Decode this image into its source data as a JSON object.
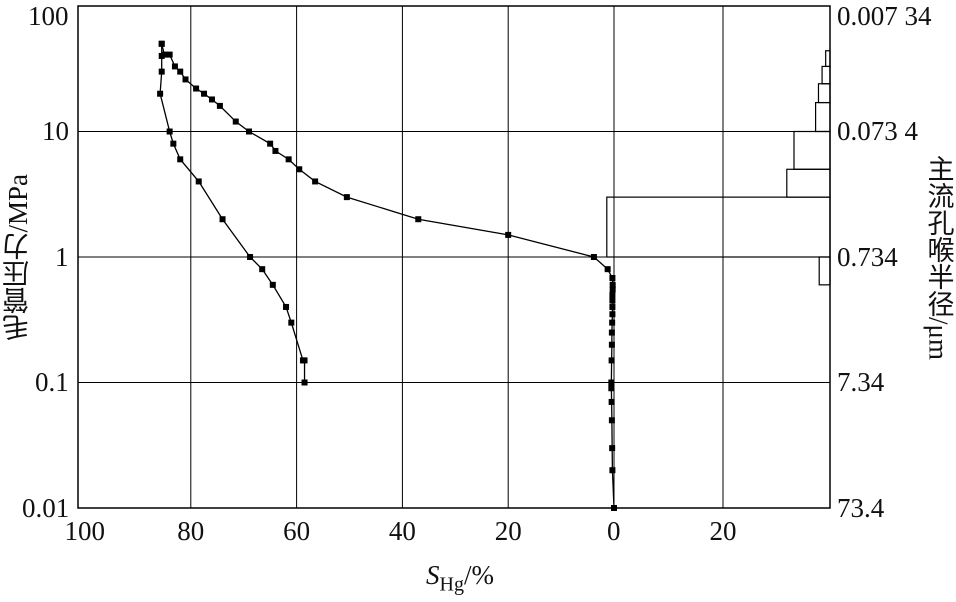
{
  "chart_data": {
    "type": "line",
    "xlabel_main": "S",
    "xlabel_sub": "Hg",
    "xlabel_unit": "/%",
    "ylabel_left": "毛管压力/MPa",
    "ylabel_right": "主流孔喉半径/μm",
    "x_ticks": [
      "100",
      "80",
      "60",
      "40",
      "20",
      "0",
      "20"
    ],
    "y_ticks_left": [
      "100",
      "10",
      "1",
      "0.1",
      "0.01"
    ],
    "y_ticks_right": [
      "0.007 34",
      "0.073 4",
      "0.734",
      "7.34",
      "73.4"
    ],
    "ylim_left": [
      0.01,
      100
    ],
    "yscale": "log",
    "grid": true,
    "series": [
      {
        "id": "injection",
        "points": [
          [
            0.0,
            0.01
          ],
          [
            0.3,
            0.02
          ],
          [
            0.35,
            0.03
          ],
          [
            0.4,
            0.05
          ],
          [
            0.45,
            0.07
          ],
          [
            0.5,
            0.09
          ],
          [
            0.5,
            0.1
          ],
          [
            0.45,
            0.15
          ],
          [
            0.4,
            0.2
          ],
          [
            0.4,
            0.25
          ],
          [
            0.35,
            0.3
          ],
          [
            0.3,
            0.35
          ],
          [
            0.3,
            0.4
          ],
          [
            0.3,
            0.45
          ],
          [
            0.3,
            0.5
          ],
          [
            0.25,
            0.55
          ],
          [
            0.25,
            0.6
          ],
          [
            0.3,
            0.68
          ],
          [
            1.2,
            0.8
          ],
          [
            3.8,
            1.0
          ],
          [
            20.0,
            1.5
          ],
          [
            37.0,
            2.0
          ],
          [
            50.5,
            3.0
          ],
          [
            56.5,
            4.0
          ],
          [
            59.5,
            5.0
          ],
          [
            61.5,
            6.0
          ],
          [
            64.0,
            7.0
          ],
          [
            65.0,
            8.0
          ],
          [
            69.0,
            10.0
          ],
          [
            71.5,
            12.0
          ],
          [
            74.5,
            16.0
          ],
          [
            76.0,
            18.0
          ],
          [
            77.5,
            20.0
          ],
          [
            79.0,
            22.0
          ],
          [
            81.0,
            26.0
          ],
          [
            82.0,
            30.0
          ],
          [
            83.0,
            33.0
          ],
          [
            84.0,
            41.0
          ],
          [
            85.0,
            41.0
          ],
          [
            85.5,
            50.0
          ]
        ]
      },
      {
        "id": "withdrawal",
        "points": [
          [
            85.5,
            50.0
          ],
          [
            85.5,
            40.0
          ],
          [
            85.5,
            30.0
          ],
          [
            85.8,
            20.0
          ],
          [
            84.0,
            10.0
          ],
          [
            83.3,
            8.0
          ],
          [
            82.0,
            6.0
          ],
          [
            78.5,
            4.0
          ],
          [
            74.0,
            2.0
          ],
          [
            68.8,
            1.0
          ],
          [
            66.5,
            0.8
          ],
          [
            64.5,
            0.6
          ],
          [
            62.0,
            0.4
          ],
          [
            61.0,
            0.3
          ],
          [
            58.8,
            0.15
          ],
          [
            58.5,
            0.15
          ],
          [
            58.5,
            0.1
          ]
        ]
      }
    ],
    "pore_histogram_bars": [
      {
        "top": 3.0,
        "bottom": 1.0,
        "value": 31
      },
      {
        "top": 5.0,
        "bottom": 3.0,
        "value": 6
      },
      {
        "top": 10.0,
        "bottom": 5.0,
        "value": 5
      },
      {
        "top": 17.0,
        "bottom": 10.0,
        "value": 2
      },
      {
        "top": 24.0,
        "bottom": 17.0,
        "value": 1.6
      },
      {
        "top": 33.0,
        "bottom": 24.0,
        "value": 1.1
      },
      {
        "top": 44.0,
        "bottom": 33.0,
        "value": 0.6
      },
      {
        "top": 1.0,
        "bottom": 0.6,
        "value": 1.5
      }
    ]
  }
}
